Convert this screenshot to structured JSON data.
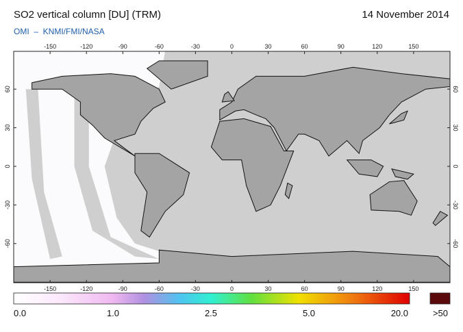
{
  "header": {
    "title": "SO2 vertical column [DU] (TRM)",
    "date": "14 November 2014",
    "source": "OMI  –  KNMI/FMI/NASA"
  },
  "map": {
    "lon_ticks": [
      -150,
      -120,
      -90,
      -60,
      -30,
      0,
      30,
      60,
      90,
      120,
      150
    ],
    "lat_ticks": [
      60,
      30,
      0,
      -30,
      -60
    ]
  },
  "colorbar": {
    "labels": [
      "0.0",
      "1.0",
      "2.5",
      "5.0",
      "20.0",
      ">50"
    ]
  }
}
